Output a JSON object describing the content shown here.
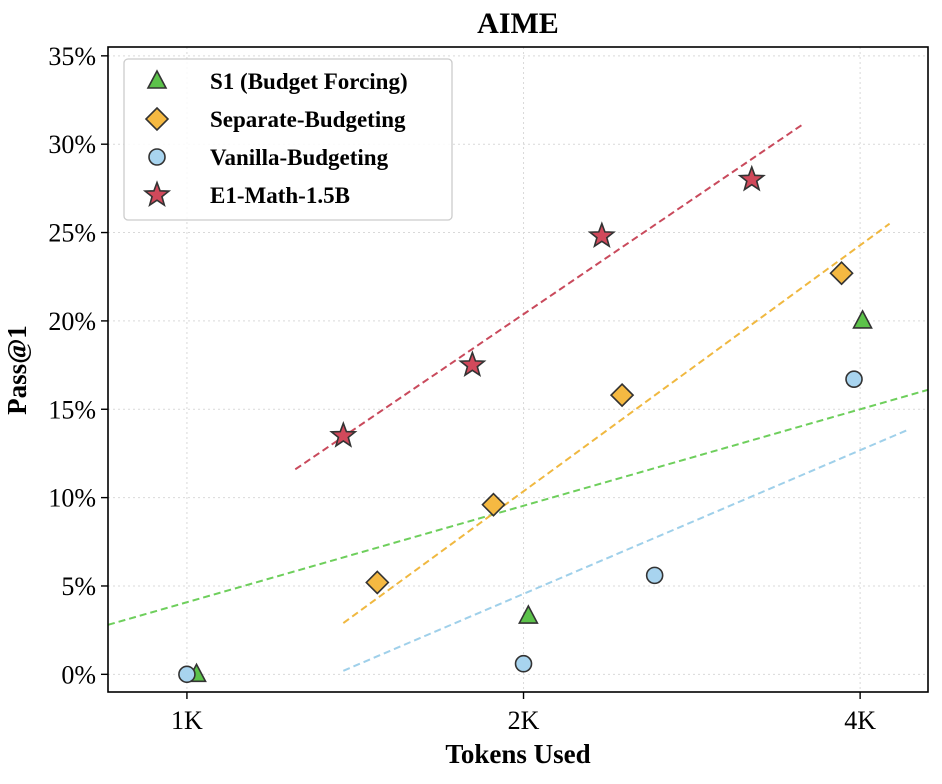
{
  "chart_data": {
    "type": "scatter",
    "title": "AIME",
    "xlabel": "Tokens Used",
    "ylabel": "Pass@1",
    "x_scale": "log2",
    "xlim": [
      850,
      4600
    ],
    "ylim": [
      -1,
      35.5
    ],
    "x_ticks": [
      {
        "value": 1000,
        "label": "1K"
      },
      {
        "value": 2000,
        "label": "2K"
      },
      {
        "value": 4000,
        "label": "4K"
      }
    ],
    "y_ticks": [
      {
        "value": 0,
        "label": "0%"
      },
      {
        "value": 5,
        "label": "5%"
      },
      {
        "value": 10,
        "label": "10%"
      },
      {
        "value": 15,
        "label": "15%"
      },
      {
        "value": 20,
        "label": "20%"
      },
      {
        "value": 25,
        "label": "25%"
      },
      {
        "value": 30,
        "label": "30%"
      },
      {
        "value": 35,
        "label": "35%"
      }
    ],
    "grid": true,
    "legend_position": "top-left",
    "series": [
      {
        "name": "S1 (Budget Forcing)",
        "marker": "triangle",
        "color": "#5cc24a",
        "line_color": "#6ecf5c",
        "points": [
          [
            1020,
            0.0
          ],
          [
            2020,
            3.3
          ],
          [
            4020,
            20.0
          ]
        ],
        "trend": {
          "x": [
            850,
            4600
          ],
          "y": [
            2.8,
            16.1
          ]
        }
      },
      {
        "name": "Separate-Budgeting",
        "marker": "diamond",
        "color": "#f5b942",
        "line_color": "#f0b840",
        "points": [
          [
            1480,
            5.2
          ],
          [
            1880,
            9.6
          ],
          [
            2450,
            15.8
          ],
          [
            3850,
            22.7
          ]
        ],
        "trend": {
          "x": [
            1380,
            4250
          ],
          "y": [
            2.9,
            25.5
          ]
        }
      },
      {
        "name": "Vanilla-Budgeting",
        "marker": "circle",
        "color": "#a8d4ef",
        "line_color": "#9fd0ea",
        "points": [
          [
            1000,
            0.0
          ],
          [
            2000,
            0.6
          ],
          [
            2620,
            5.6
          ],
          [
            3950,
            16.7
          ]
        ],
        "trend": {
          "x": [
            1380,
            4400
          ],
          "y": [
            0.2,
            13.8
          ]
        }
      },
      {
        "name": "E1-Math-1.5B",
        "marker": "star",
        "color": "#d1495b",
        "line_color": "#c94a5c",
        "points": [
          [
            1380,
            13.5
          ],
          [
            1800,
            17.5
          ],
          [
            2350,
            24.8
          ],
          [
            3200,
            28.0
          ]
        ],
        "trend": {
          "x": [
            1250,
            3550
          ],
          "y": [
            11.6,
            31.1
          ]
        }
      }
    ]
  }
}
